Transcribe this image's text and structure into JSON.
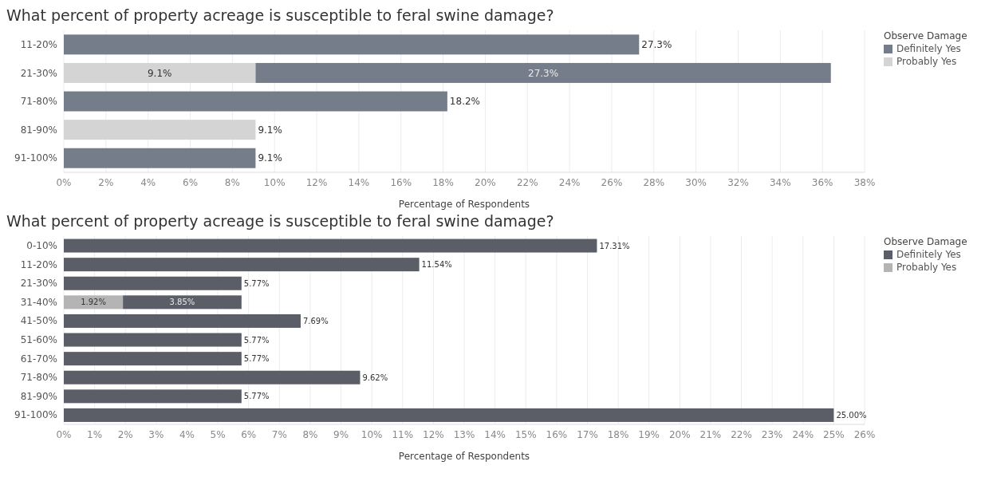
{
  "chart_data": [
    {
      "type": "bar",
      "orientation": "horizontal",
      "stacked": true,
      "title": "What percent of property acreage is susceptible to feral swine damage?",
      "xlabel": "Percentage of Respondents",
      "legend_title": "Observe Damage",
      "legend": "top right",
      "grid": "x",
      "categories": [
        "11-20%",
        "21-30%",
        "71-80%",
        "81-90%",
        "91-100%"
      ],
      "series": [
        {
          "name": "Probably Yes",
          "color": "#d4d4d4",
          "values": [
            null,
            9.1,
            null,
            9.1,
            null
          ],
          "value_labels": [
            null,
            "9.1%",
            null,
            "9.1%",
            null
          ]
        },
        {
          "name": "Definitely Yes",
          "color": "#767d8a",
          "values": [
            27.3,
            27.3,
            18.2,
            null,
            9.1
          ],
          "value_labels": [
            "27.3%",
            "27.3%",
            "18.2%",
            null,
            "9.1%"
          ]
        }
      ],
      "xlim": [
        0,
        38
      ],
      "xticks": [
        {
          "value": 0,
          "label": "0%"
        },
        {
          "value": 2,
          "label": "2%"
        },
        {
          "value": 4,
          "label": "4%"
        },
        {
          "value": 6,
          "label": "6%"
        },
        {
          "value": 8,
          "label": "8%"
        },
        {
          "value": 10,
          "label": "10%"
        },
        {
          "value": 12,
          "label": "12%"
        },
        {
          "value": 14,
          "label": "14%"
        },
        {
          "value": 16,
          "label": "16%"
        },
        {
          "value": 18,
          "label": "18%"
        },
        {
          "value": 20,
          "label": "20%"
        },
        {
          "value": 22,
          "label": "22%"
        },
        {
          "value": 24,
          "label": "24%"
        },
        {
          "value": 26,
          "label": "26%"
        },
        {
          "value": 28,
          "label": "28%"
        },
        {
          "value": 30,
          "label": "30%"
        },
        {
          "value": 32,
          "label": "32%"
        },
        {
          "value": 34,
          "label": "34%"
        },
        {
          "value": 36,
          "label": "36%"
        },
        {
          "value": 38,
          "label": "38%"
        }
      ]
    },
    {
      "type": "bar",
      "orientation": "horizontal",
      "stacked": true,
      "title": "What percent of property acreage is susceptible to feral swine damage?",
      "xlabel": "Percentage of Respondents",
      "legend_title": "Observe Damage",
      "legend": "top right",
      "grid": "x",
      "categories": [
        "0-10%",
        "11-20%",
        "21-30%",
        "31-40%",
        "41-50%",
        "51-60%",
        "61-70%",
        "71-80%",
        "81-90%",
        "91-100%"
      ],
      "series": [
        {
          "name": "Probably Yes",
          "color": "#b4b4b4",
          "values": [
            null,
            null,
            null,
            1.92,
            null,
            null,
            null,
            null,
            null,
            null
          ],
          "value_labels": [
            null,
            null,
            null,
            "1.92%",
            null,
            null,
            null,
            null,
            null,
            null
          ]
        },
        {
          "name": "Definitely Yes",
          "color": "#5b5e66",
          "values": [
            17.31,
            11.54,
            5.77,
            3.85,
            7.69,
            5.77,
            5.77,
            9.62,
            5.77,
            25.0
          ],
          "value_labels": [
            "17.31%",
            "11.54%",
            "5.77%",
            "3.85%",
            "7.69%",
            "5.77%",
            "5.77%",
            "9.62%",
            "5.77%",
            "25.00%"
          ]
        }
      ],
      "xlim": [
        0,
        26
      ],
      "xticks": [
        {
          "value": 0,
          "label": "0%"
        },
        {
          "value": 1,
          "label": "1%"
        },
        {
          "value": 2,
          "label": "2%"
        },
        {
          "value": 3,
          "label": "3%"
        },
        {
          "value": 4,
          "label": "4%"
        },
        {
          "value": 5,
          "label": "5%"
        },
        {
          "value": 6,
          "label": "6%"
        },
        {
          "value": 7,
          "label": "7%"
        },
        {
          "value": 8,
          "label": "8%"
        },
        {
          "value": 9,
          "label": "9%"
        },
        {
          "value": 10,
          "label": "10%"
        },
        {
          "value": 11,
          "label": "11%"
        },
        {
          "value": 12,
          "label": "12%"
        },
        {
          "value": 13,
          "label": "13%"
        },
        {
          "value": 14,
          "label": "14%"
        },
        {
          "value": 15,
          "label": "15%"
        },
        {
          "value": 16,
          "label": "16%"
        },
        {
          "value": 17,
          "label": "17%"
        },
        {
          "value": 18,
          "label": "18%"
        },
        {
          "value": 19,
          "label": "19%"
        },
        {
          "value": 20,
          "label": "20%"
        },
        {
          "value": 21,
          "label": "21%"
        },
        {
          "value": 22,
          "label": "22%"
        },
        {
          "value": 23,
          "label": "23%"
        },
        {
          "value": 24,
          "label": "24%"
        },
        {
          "value": 25,
          "label": "25%"
        },
        {
          "value": 26,
          "label": "26%"
        }
      ]
    }
  ]
}
